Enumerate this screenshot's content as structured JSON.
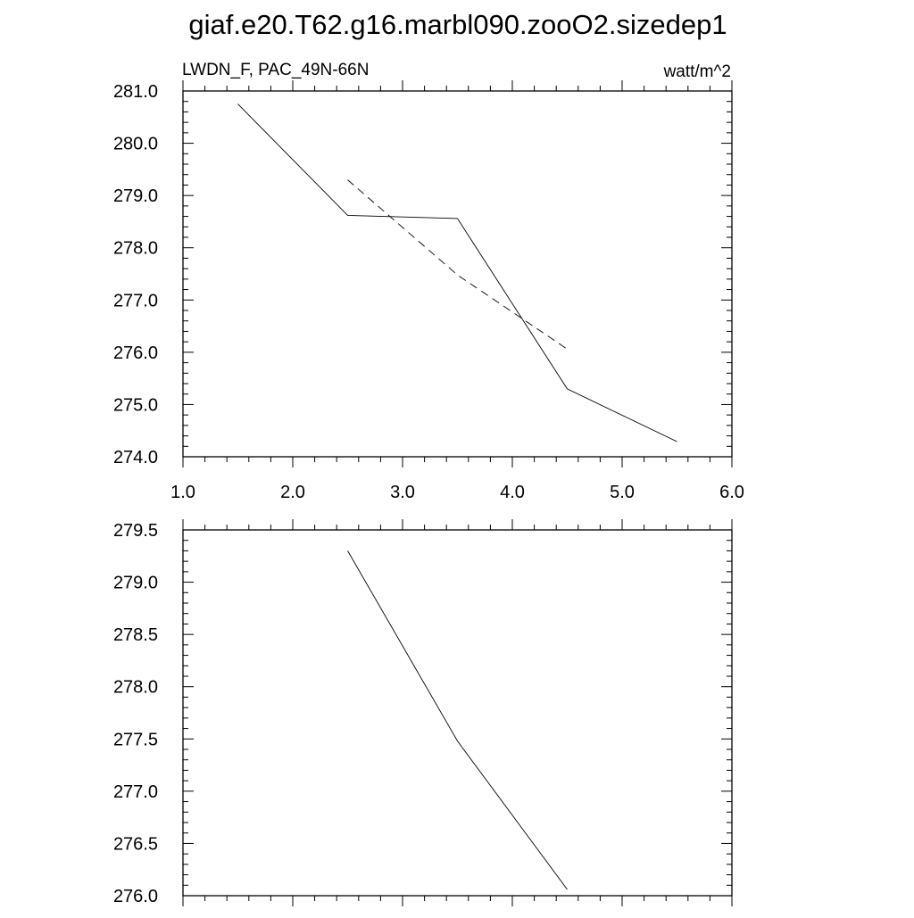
{
  "title": "giaf.e20.T62.g16.marbl090.zooO2.sizedep1",
  "chart_data": [
    {
      "type": "line",
      "left_label": "LWDN_F, PAC_49N-66N",
      "right_label": "watt/m^2",
      "xlim": [
        1.0,
        6.0
      ],
      "ylim": [
        274.0,
        281.0
      ],
      "xticks": [
        "1.0",
        "2.0",
        "3.0",
        "4.0",
        "5.0",
        "6.0"
      ],
      "yticks": [
        "274.0",
        "275.0",
        "276.0",
        "277.0",
        "278.0",
        "279.0",
        "280.0",
        "281.0"
      ],
      "series": [
        {
          "style": "solid",
          "x": [
            1.5,
            2.5,
            3.5,
            4.5,
            5.5
          ],
          "y": [
            280.75,
            278.62,
            278.56,
            275.3,
            274.29
          ]
        },
        {
          "style": "dashed",
          "x": [
            2.5,
            3.5,
            4.5
          ],
          "y": [
            279.3,
            277.48,
            276.06
          ]
        }
      ]
    },
    {
      "type": "line",
      "xlim": [
        1.0,
        6.0
      ],
      "ylim": [
        276.0,
        279.5
      ],
      "yticks": [
        "276.0",
        "276.5",
        "277.0",
        "277.5",
        "278.0",
        "278.5",
        "279.0",
        "279.5"
      ],
      "series": [
        {
          "style": "solid",
          "x": [
            2.5,
            3.5,
            4.5
          ],
          "y": [
            279.3,
            277.48,
            276.06
          ]
        }
      ]
    }
  ]
}
